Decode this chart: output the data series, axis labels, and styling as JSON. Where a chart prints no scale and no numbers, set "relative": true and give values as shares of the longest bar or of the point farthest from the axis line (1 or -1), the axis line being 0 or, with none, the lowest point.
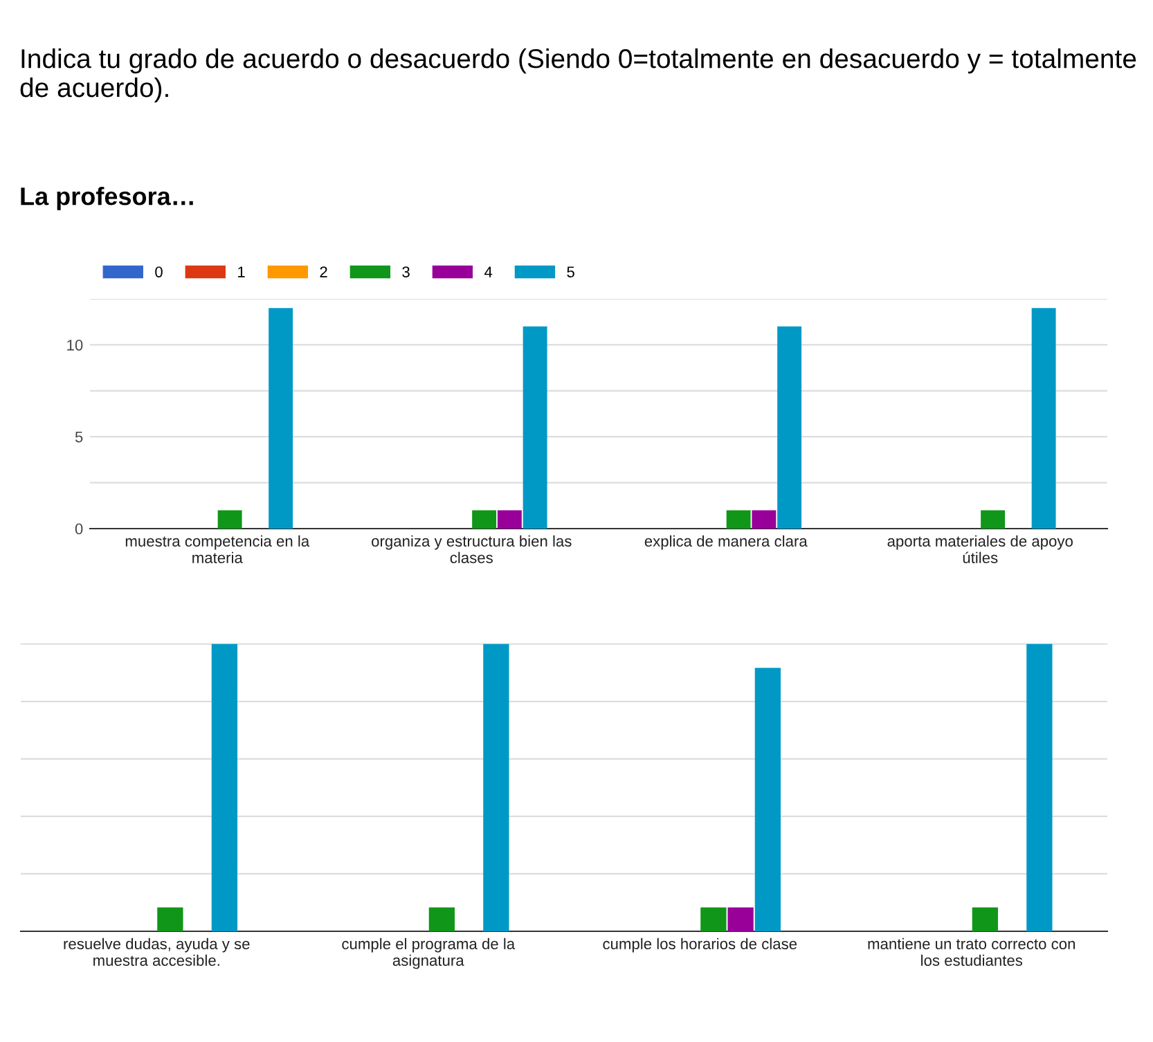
{
  "chart_data": [
    {
      "type": "bar",
      "title": "Indica tu grado de acuerdo o desacuerdo (Siendo 0=totalmente en desacuerdo y = totalmente de acuerdo).",
      "subtitle": "La profesora…",
      "categories": [
        "muestra competencia en la materia",
        "organiza y estructura bien las clases",
        "explica de manera clara",
        "aporta materiales de apoyo útiles"
      ],
      "series": [
        {
          "name": "0",
          "color": "#3366cc",
          "values": [
            0,
            0,
            0,
            0
          ]
        },
        {
          "name": "1",
          "color": "#dc3912",
          "values": [
            0,
            0,
            0,
            0
          ]
        },
        {
          "name": "2",
          "color": "#ff9900",
          "values": [
            0,
            0,
            0,
            0
          ]
        },
        {
          "name": "3",
          "color": "#109618",
          "values": [
            1,
            1,
            1,
            1
          ]
        },
        {
          "name": "4",
          "color": "#990099",
          "values": [
            0,
            1,
            1,
            0
          ]
        },
        {
          "name": "5",
          "color": "#0099c6",
          "values": [
            12,
            11,
            11,
            12
          ]
        }
      ],
      "ylim": [
        0,
        12.5
      ],
      "yticks": [
        0,
        {
          "value": 2.5,
          "label": null
        },
        5,
        {
          "value": 7.5,
          "label": null
        },
        10,
        {
          "value": 12.5,
          "label": null
        }
      ],
      "grid": "y",
      "legend": "top left"
    },
    {
      "type": "bar",
      "relative": true,
      "categories": [
        "resuelve dudas, ayuda y se muestra accesible.",
        "cumple el programa de la asignatura",
        "cumple los horarios de clase",
        "mantiene un trato correcto con los estudiantes"
      ],
      "series": [
        {
          "color": "#3366cc",
          "values": [
            0,
            0,
            0,
            0
          ]
        },
        {
          "color": "#dc3912",
          "values": [
            0,
            0,
            0,
            0
          ]
        },
        {
          "color": "#ff9900",
          "values": [
            0,
            0,
            0,
            0
          ]
        },
        {
          "color": "#109618",
          "values": [
            0.083,
            0.083,
            0.083,
            0.083
          ]
        },
        {
          "color": "#990099",
          "values": [
            0,
            0,
            0.083,
            0
          ]
        },
        {
          "color": "#0099c6",
          "values": [
            1,
            1,
            0.917,
            1
          ]
        }
      ],
      "grid": "y",
      "legend": false
    }
  ]
}
